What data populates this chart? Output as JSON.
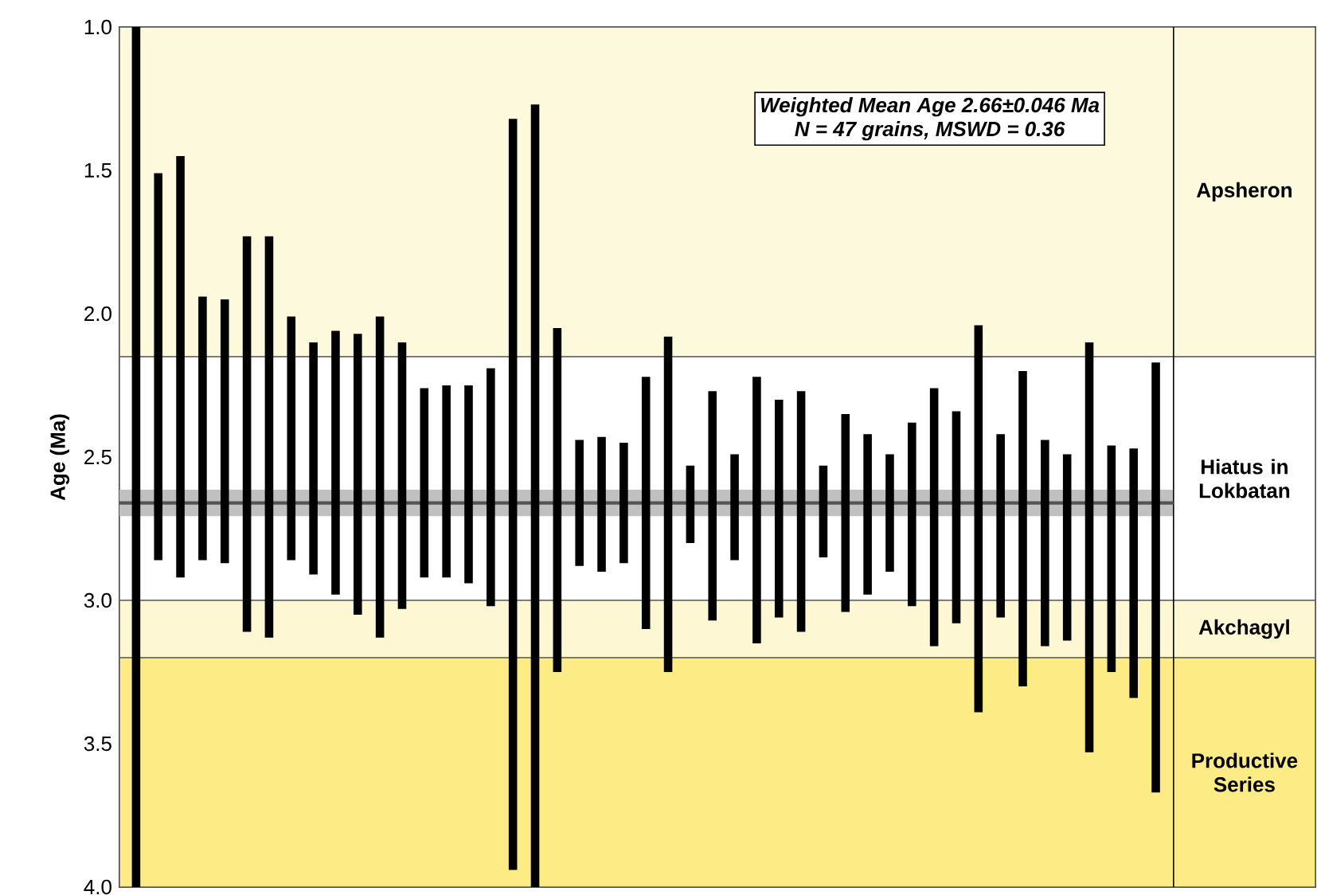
{
  "chart_data": {
    "type": "bar",
    "ylabel": "Age (Ma)",
    "categories": [
      null,
      null,
      null,
      null,
      null,
      null,
      null,
      null,
      null,
      null,
      null,
      null,
      null,
      null,
      null,
      null,
      null,
      null,
      null,
      null,
      null,
      null,
      null,
      null,
      null,
      null,
      null,
      null,
      null,
      null,
      null,
      null,
      null,
      null,
      null,
      null,
      null,
      null,
      null,
      null,
      null,
      null,
      null,
      null,
      null,
      null,
      null
    ],
    "base": [
      1.0,
      1.51,
      1.45,
      1.94,
      1.95,
      1.73,
      1.73,
      2.01,
      2.1,
      2.06,
      2.07,
      2.01,
      2.1,
      2.26,
      2.25,
      2.25,
      2.19,
      1.32,
      1.27,
      2.05,
      2.44,
      2.43,
      2.45,
      2.22,
      2.08,
      2.53,
      2.27,
      2.49,
      2.22,
      2.3,
      2.27,
      2.53,
      2.35,
      2.42,
      2.49,
      2.38,
      2.26,
      2.34,
      2.04,
      2.42,
      2.2,
      2.44,
      2.49,
      2.1,
      2.46,
      2.47,
      2.17
    ],
    "values": [
      3.0,
      1.35,
      1.47,
      0.92,
      0.92,
      1.38,
      1.4,
      0.85,
      0.81,
      0.92,
      0.98,
      1.12,
      0.93,
      0.66,
      0.67,
      0.69,
      0.83,
      2.62,
      2.73,
      1.2,
      0.44,
      0.47,
      0.42,
      0.88,
      1.17,
      0.27,
      0.8,
      0.37,
      0.93,
      0.76,
      0.84,
      0.32,
      0.69,
      0.56,
      0.41,
      0.64,
      0.9,
      0.74,
      1.35,
      0.64,
      1.1,
      0.72,
      0.65,
      1.43,
      0.79,
      0.87,
      1.5
    ],
    "color": "#000000",
    "ylim": [
      4.0,
      1.0
    ],
    "yticks": [
      {
        "value": 1.0,
        "label": "1.0"
      },
      {
        "value": 1.1,
        "label": null
      },
      {
        "value": 1.2,
        "label": null
      },
      {
        "value": 1.3,
        "label": null
      },
      {
        "value": 1.4,
        "label": null
      },
      {
        "value": 1.5,
        "label": "1.5"
      },
      {
        "value": 1.6,
        "label": null
      },
      {
        "value": 1.7,
        "label": null
      },
      {
        "value": 1.8,
        "label": null
      },
      {
        "value": 1.9,
        "label": null
      },
      {
        "value": 2.0,
        "label": "2.0"
      },
      {
        "value": 2.1,
        "label": null
      },
      {
        "value": 2.2,
        "label": null
      },
      {
        "value": 2.3,
        "label": null
      },
      {
        "value": 2.4,
        "label": null
      },
      {
        "value": 2.5,
        "label": "2.5"
      },
      {
        "value": 2.6,
        "label": null
      },
      {
        "value": 2.7,
        "label": null
      },
      {
        "value": 2.8,
        "label": null
      },
      {
        "value": 2.9,
        "label": null
      },
      {
        "value": 3.0,
        "label": "3.0"
      },
      {
        "value": 3.1,
        "label": null
      },
      {
        "value": 3.2,
        "label": null
      },
      {
        "value": 3.3,
        "label": null
      },
      {
        "value": 3.4,
        "label": null
      },
      {
        "value": 3.5,
        "label": "3.5"
      },
      {
        "value": 3.6,
        "label": null
      },
      {
        "value": 3.7,
        "label": null
      },
      {
        "value": 3.8,
        "label": null
      },
      {
        "value": 3.9,
        "label": null
      },
      {
        "value": 4.0,
        "label": "4.0"
      }
    ],
    "bands": [
      {
        "axis": "y",
        "from": 1.0,
        "to": 2.15,
        "label": "Apsheron",
        "color": "#fdf9dc"
      },
      {
        "axis": "y",
        "from": 2.15,
        "to": 3.0,
        "label": "Hiatus in Lokbatan",
        "color": "#ffffff"
      },
      {
        "axis": "y",
        "from": 3.0,
        "to": 3.2,
        "label": "Akchagyl",
        "color": "#fdf7d3"
      },
      {
        "axis": "y",
        "from": 3.2,
        "to": 4.0,
        "label": "Productive Series",
        "color": "#fdec86"
      },
      {
        "axis": "y",
        "from": 2.614,
        "to": 2.706,
        "color": "#c0c0c0"
      }
    ],
    "ref_lines": [
      {
        "axis": "y",
        "value": 2.66,
        "color": "#555555"
      }
    ],
    "annotations": [
      "Weighted Mean Age 2.66±0.046  Ma",
      "N = 47 grains, MSWD = 0.36"
    ]
  }
}
